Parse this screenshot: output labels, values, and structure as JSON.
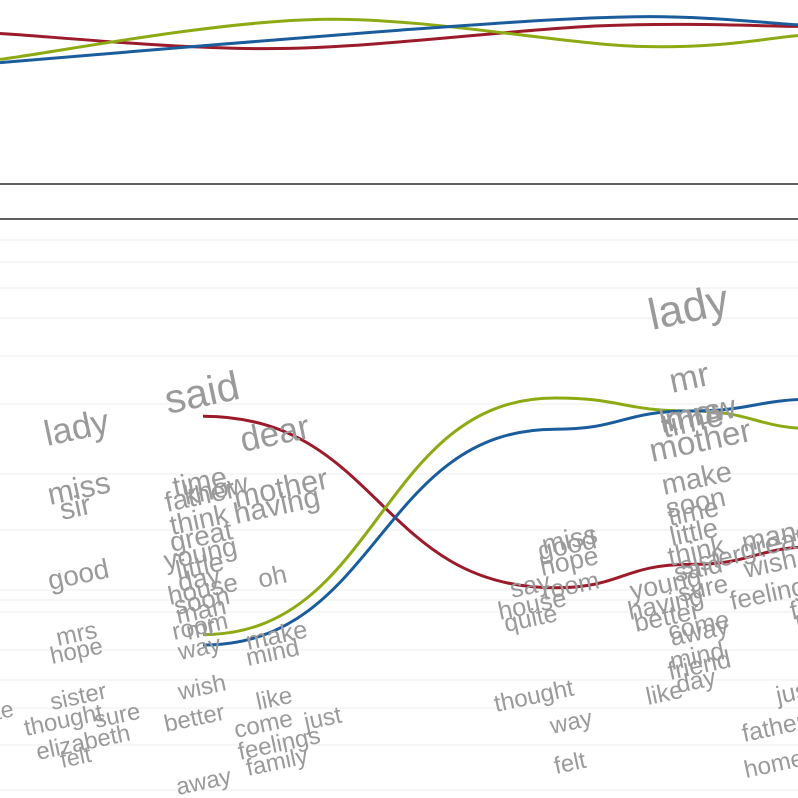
{
  "colors": {
    "said": "#9b1b2a",
    "mr": "#8daa14",
    "mrs": "#1a5c9c",
    "word": "#9a9a9a",
    "word_dark": "#7a7a7a"
  },
  "chart_data": {
    "type": "line",
    "overview": {
      "series": [
        {
          "key": "said",
          "points": [
            [
              0,
              0.64
            ],
            [
              0.35,
              0.36
            ],
            [
              0.75,
              0.78
            ],
            [
              1,
              0.77
            ]
          ]
        },
        {
          "key": "mr",
          "points": [
            [
              0,
              0.16
            ],
            [
              0.4,
              0.9
            ],
            [
              0.8,
              0.4
            ],
            [
              1,
              0.6
            ]
          ]
        },
        {
          "key": "mrs",
          "points": [
            [
              0,
              0.1
            ],
            [
              0.5,
              0.7
            ],
            [
              0.8,
              0.95
            ],
            [
              1,
              0.8
            ]
          ]
        }
      ]
    },
    "detail": {
      "columns": 5,
      "series": [
        {
          "key": "said",
          "label": "said",
          "values": [
            null,
            0.88,
            null,
            0.22,
            0.31,
            null
          ]
        },
        {
          "key": "mr",
          "label": "mr",
          "values": [
            null,
            0.04,
            null,
            0.95,
            0.9,
            null
          ]
        },
        {
          "key": "mrs",
          "label": "mrs",
          "values": [
            null,
            0.0,
            null,
            0.83,
            0.9,
            null
          ]
        }
      ],
      "word_columns": [
        {
          "column": 0,
          "words": [
            {
              "text": "lady",
              "weight": 0.72
            },
            {
              "text": "miss",
              "weight": 0.56
            },
            {
              "text": "sir",
              "weight": 0.52
            },
            {
              "text": "good",
              "weight": 0.46
            },
            {
              "text": "mrs",
              "weight": 0.36,
              "series": "mrs"
            },
            {
              "text": "hope",
              "weight": 0.33
            },
            {
              "text": "sister",
              "weight": 0.33
            },
            {
              "text": "thought",
              "weight": 0.33
            },
            {
              "text": "sure",
              "weight": 0.33
            },
            {
              "text": "elizabeth",
              "weight": 0.33
            },
            {
              "text": "felt",
              "weight": 0.31
            },
            {
              "text": "te",
              "weight": 0.3
            }
          ]
        },
        {
          "column": 1,
          "words": [
            {
              "text": "said",
              "weight": 0.9,
              "series": "said"
            },
            {
              "text": "time",
              "weight": 0.5
            },
            {
              "text": "father",
              "weight": 0.46
            },
            {
              "text": "know",
              "weight": 0.46
            },
            {
              "text": "think",
              "weight": 0.46
            },
            {
              "text": "great",
              "weight": 0.46
            },
            {
              "text": "young",
              "weight": 0.44
            },
            {
              "text": "little",
              "weight": 0.44
            },
            {
              "text": "day",
              "weight": 0.42
            },
            {
              "text": "house",
              "weight": 0.4
            },
            {
              "text": "soon",
              "weight": 0.4
            },
            {
              "text": "man",
              "weight": 0.4
            },
            {
              "text": "room",
              "weight": 0.36
            },
            {
              "text": "mr",
              "weight": 0.38,
              "series": "mr"
            },
            {
              "text": "way",
              "weight": 0.34
            },
            {
              "text": "wish",
              "weight": 0.34
            },
            {
              "text": "better",
              "weight": 0.33
            },
            {
              "text": "away",
              "weight": 0.33
            }
          ]
        },
        {
          "column": 2,
          "words": [
            {
              "text": "dear",
              "weight": 0.7
            },
            {
              "text": "mother",
              "weight": 0.56
            },
            {
              "text": "having",
              "weight": 0.52
            },
            {
              "text": "oh",
              "weight": 0.4
            },
            {
              "text": "make",
              "weight": 0.38
            },
            {
              "text": "mind",
              "weight": 0.36
            },
            {
              "text": "like",
              "weight": 0.34
            },
            {
              "text": "come",
              "weight": 0.34
            },
            {
              "text": "feelings",
              "weight": 0.34
            },
            {
              "text": "just",
              "weight": 0.34
            },
            {
              "text": "family",
              "weight": 0.33
            }
          ]
        },
        {
          "column": 3,
          "words": [
            {
              "text": "miss",
              "weight": 0.44
            },
            {
              "text": "good",
              "weight": 0.42
            },
            {
              "text": "hope",
              "weight": 0.42
            },
            {
              "text": "say",
              "weight": 0.4
            },
            {
              "text": "room",
              "weight": 0.38
            },
            {
              "text": "house",
              "weight": 0.38
            },
            {
              "text": "quite",
              "weight": 0.36
            },
            {
              "text": "thought",
              "weight": 0.34
            },
            {
              "text": "way",
              "weight": 0.33
            },
            {
              "text": "felt",
              "weight": 0.33
            }
          ]
        },
        {
          "column": 4,
          "words": [
            {
              "text": "lady",
              "weight": 1.0
            },
            {
              "text": "mr",
              "weight": 0.68,
              "series": "mr"
            },
            {
              "text": "know",
              "weight": 0.64
            },
            {
              "text": "time",
              "weight": 0.64
            },
            {
              "text": "mrs",
              "weight": 0.66,
              "series": "mrs"
            },
            {
              "text": "mother",
              "weight": 0.64
            },
            {
              "text": "make",
              "weight": 0.5
            },
            {
              "text": "soon",
              "weight": 0.46
            },
            {
              "text": "time",
              "weight": 0.44
            },
            {
              "text": "little",
              "weight": 0.44
            },
            {
              "text": "think",
              "weight": 0.44
            },
            {
              "text": "young",
              "weight": 0.42
            },
            {
              "text": "sister",
              "weight": 0.4
            },
            {
              "text": "said",
              "weight": 0.42,
              "series": "said"
            },
            {
              "text": "having",
              "weight": 0.4
            },
            {
              "text": "sure",
              "weight": 0.4
            },
            {
              "text": "better",
              "weight": 0.4
            },
            {
              "text": "come",
              "weight": 0.38
            },
            {
              "text": "away",
              "weight": 0.38
            },
            {
              "text": "mind",
              "weight": 0.38
            },
            {
              "text": "friend",
              "weight": 0.38
            },
            {
              "text": "like",
              "weight": 0.36
            },
            {
              "text": "day",
              "weight": 0.36
            }
          ]
        },
        {
          "column": 5,
          "words": [
            {
              "text": "man",
              "weight": 0.48
            },
            {
              "text": "great",
              "weight": 0.48
            },
            {
              "text": "wish",
              "weight": 0.42
            },
            {
              "text": "feelings",
              "weight": 0.4
            },
            {
              "text": "fam",
              "weight": 0.4
            },
            {
              "text": "love",
              "weight": 0.38
            },
            {
              "text": "just",
              "weight": 0.36
            },
            {
              "text": "father",
              "weight": 0.36
            },
            {
              "text": "home",
              "weight": 0.34
            }
          ]
        }
      ]
    }
  }
}
